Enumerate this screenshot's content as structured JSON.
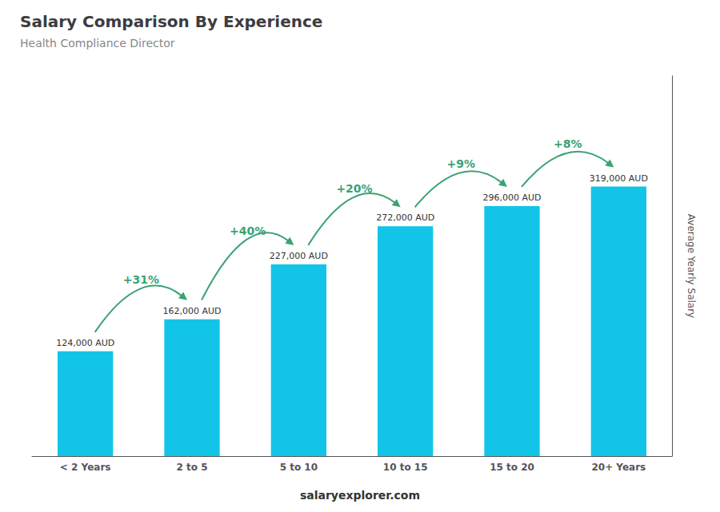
{
  "chart_data": {
    "type": "bar",
    "title": "Salary Comparison By Experience",
    "subtitle": "Health Compliance Director",
    "categories": [
      "< 2 Years",
      "2 to 5",
      "5 to 10",
      "10 to 15",
      "15 to 20",
      "20+ Years"
    ],
    "values": [
      124000,
      162000,
      227000,
      272000,
      296000,
      319000
    ],
    "value_labels": [
      "124,000 AUD",
      "162,000 AUD",
      "227,000 AUD",
      "272,000 AUD",
      "296,000 AUD",
      "319,000 AUD"
    ],
    "data_labels": true,
    "annotations": [
      "+31%",
      "+40%",
      "+20%",
      "+9%",
      "+8%"
    ],
    "ylabel": "Average Yearly Salary",
    "footer": "salaryexplorer.com",
    "color": "#12c5e8",
    "ylim": [
      0,
      450000
    ],
    "grid": false,
    "tick_labels": "x"
  }
}
